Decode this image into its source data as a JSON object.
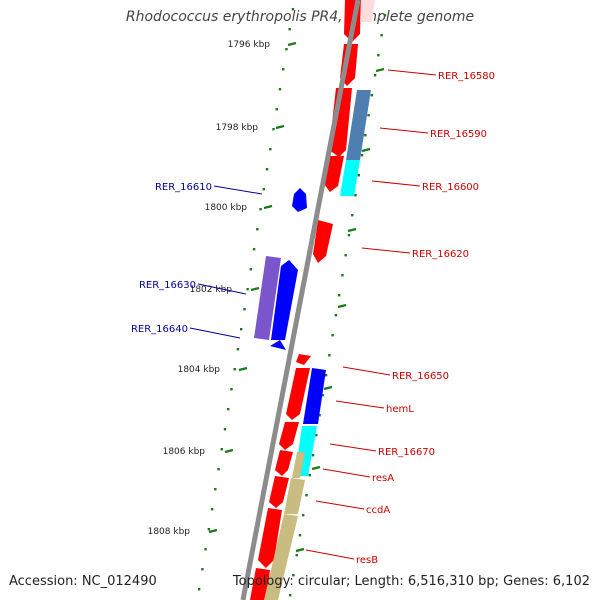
{
  "title": "Rhodococcus erythropolis PR4, complete genome",
  "footer": {
    "accession": "Accession: NC_012490",
    "topology": "Topology: circular; Length: 6,516,310 bp; Genes: 6,102"
  },
  "colors": {
    "backbone": "#8c8c8c",
    "forward_cds": "#ff0000",
    "reverse_cds": "#0000ff",
    "rrna": "#00ffff",
    "other": "#c8bc80",
    "purple": "#7a55cc",
    "steelblue": "#4f7fb0",
    "ticks": "#1a7a1a",
    "label_fwd": "#cc0000",
    "label_rev": "#000099"
  },
  "kbp_labels": [
    "1796 kbp",
    "1798 kbp",
    "1800 kbp",
    "1802 kbp",
    "1804 kbp",
    "1806 kbp",
    "1808 kbp"
  ],
  "gene_labels_right": [
    "RER_16580",
    "RER_16590",
    "RER_16600",
    "RER_16620",
    "RER_16650",
    "hemL",
    "RER_16670",
    "resA",
    "ccdA",
    "resB"
  ],
  "gene_labels_left": [
    "RER_16610",
    "RER_16630",
    "RER_16640"
  ]
}
